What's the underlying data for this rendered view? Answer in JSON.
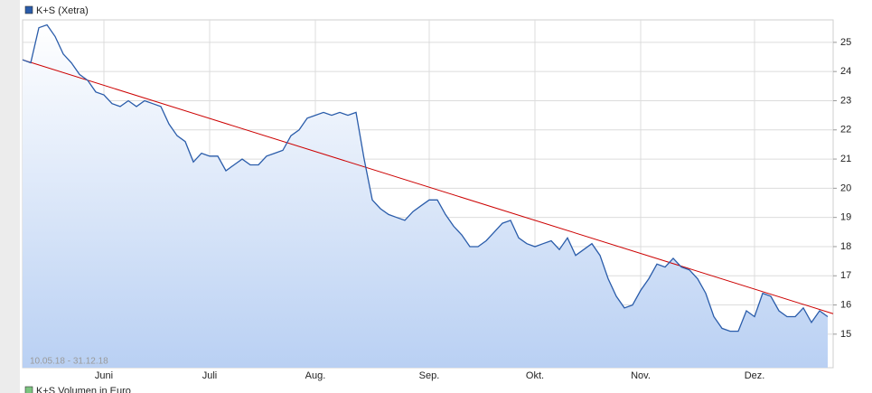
{
  "chart_data": {
    "type": "line",
    "series": [
      {
        "name": "K+S (Xetra)",
        "color": "#2a5caa",
        "values": [
          24.4,
          24.3,
          25.5,
          25.6,
          25.2,
          24.6,
          24.3,
          23.9,
          23.7,
          23.3,
          23.2,
          22.9,
          22.8,
          23.0,
          22.8,
          23.0,
          22.9,
          22.8,
          22.2,
          21.8,
          21.6,
          20.9,
          21.2,
          21.1,
          21.1,
          20.6,
          20.8,
          21.0,
          20.8,
          20.8,
          21.1,
          21.2,
          21.3,
          21.8,
          22.0,
          22.4,
          22.5,
          22.6,
          22.5,
          22.6,
          22.5,
          22.6,
          21.0,
          19.6,
          19.3,
          19.1,
          19.0,
          18.9,
          19.2,
          19.4,
          19.6,
          19.6,
          19.1,
          18.7,
          18.4,
          18.0,
          18.0,
          18.2,
          18.5,
          18.8,
          18.9,
          18.3,
          18.1,
          18.0,
          18.1,
          18.2,
          17.9,
          18.3,
          17.7,
          17.9,
          18.1,
          17.7,
          16.9,
          16.3,
          15.9,
          16.0,
          16.5,
          16.9,
          17.4,
          17.3,
          17.6,
          17.3,
          17.2,
          16.9,
          16.4,
          15.6,
          15.2,
          15.1,
          15.1,
          15.8,
          15.6,
          16.4,
          16.3,
          15.8,
          15.6,
          15.6,
          15.9,
          15.4,
          15.8,
          15.6
        ]
      }
    ],
    "categories": [
      null,
      null,
      null,
      null,
      null,
      null,
      null,
      null,
      null,
      null,
      "Juni",
      null,
      null,
      null,
      null,
      null,
      null,
      null,
      null,
      null,
      null,
      null,
      null,
      "Juli",
      null,
      null,
      null,
      null,
      null,
      null,
      null,
      null,
      null,
      null,
      null,
      null,
      "Aug.",
      null,
      null,
      null,
      null,
      null,
      null,
      null,
      null,
      null,
      null,
      null,
      null,
      null,
      "Sep.",
      null,
      null,
      null,
      null,
      null,
      null,
      null,
      null,
      null,
      null,
      null,
      null,
      "Okt.",
      null,
      null,
      null,
      null,
      null,
      null,
      null,
      null,
      null,
      null,
      null,
      null,
      "Nov.",
      null,
      null,
      null,
      null,
      null,
      null,
      null,
      null,
      null,
      null,
      null,
      null,
      null,
      "Dez.",
      null,
      null,
      null,
      null,
      null,
      null,
      null,
      null,
      null
    ],
    "ylim": [
      13.85,
      25.77
    ],
    "yticks": [
      15,
      16,
      17,
      18,
      19,
      20,
      21,
      22,
      23,
      24,
      25
    ],
    "grid": true,
    "date_range": "10.05.18 - 31.12.18",
    "trend_line": {
      "start": 24.4,
      "end": 15.7,
      "color": "#cc0000"
    },
    "volume_legend": {
      "label": "K+S Volumen in Euro",
      "color": "#7bc47f"
    }
  }
}
